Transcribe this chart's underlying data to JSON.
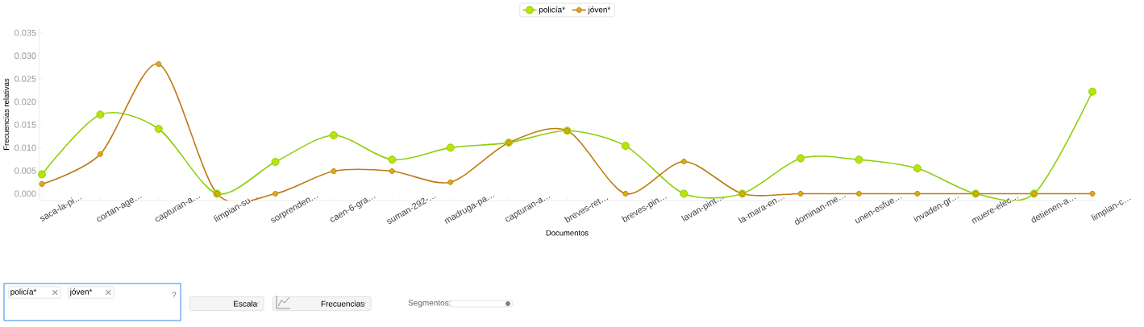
{
  "chart_data": {
    "type": "line",
    "xlabel": "Documentos",
    "ylabel": "Frecuencias relativas",
    "categories": [
      "saca-la-pi…",
      "cortan-age…",
      "capturan-a…",
      "limpian-su…",
      "sorprenden…",
      "caen-6-gra…",
      "suman-292-…",
      "madruga-pa…",
      "capturan-a…",
      "breves-ret…",
      "breves-pin…",
      "lavan-pint…",
      "la-mara-en…",
      "dominan-me…",
      "unen-esfue…",
      "invaden-gr…",
      "muere-elec…",
      "detienen-a…",
      "limpian-c…"
    ],
    "series": [
      {
        "name": "policía*",
        "color": "#8cd00a",
        "values": [
          0.0042,
          0.0172,
          0.0141,
          0,
          0.0069,
          0.0127,
          0.0074,
          0.01,
          0.0111,
          0.0137,
          0.0104,
          0,
          0,
          0.0077,
          0.0074,
          0.0055,
          0,
          0,
          0.0222
        ]
      },
      {
        "name": "jóven*",
        "color": "#c07a10",
        "values": [
          0.0021,
          0.0086,
          0.0282,
          0,
          0,
          0.0049,
          0.0049,
          0.0025,
          0.0111,
          0.0137,
          0,
          0.007,
          0,
          0,
          0,
          0,
          0,
          0,
          0
        ]
      }
    ],
    "ylim": [
      -0.0015,
      0.036
    ],
    "yticks": [
      {
        "value": 0,
        "label": "0.000"
      },
      {
        "value": 0.005,
        "label": "0.005"
      },
      {
        "value": 0.01,
        "label": "0.010"
      },
      {
        "value": 0.015,
        "label": "0.015"
      },
      {
        "value": 0.02,
        "label": "0.020"
      },
      {
        "value": 0.025,
        "label": "0.025"
      },
      {
        "value": 0.03,
        "label": "0.030"
      },
      {
        "value": 0.035,
        "label": "0.035"
      }
    ],
    "grid": false,
    "legend": "top",
    "marker": "circle",
    "line_style": "solid",
    "annotations": [
      "policía*",
      "jóven*",
      "?",
      "Escala",
      "Frecuencias",
      "Segmentos:"
    ]
  }
}
